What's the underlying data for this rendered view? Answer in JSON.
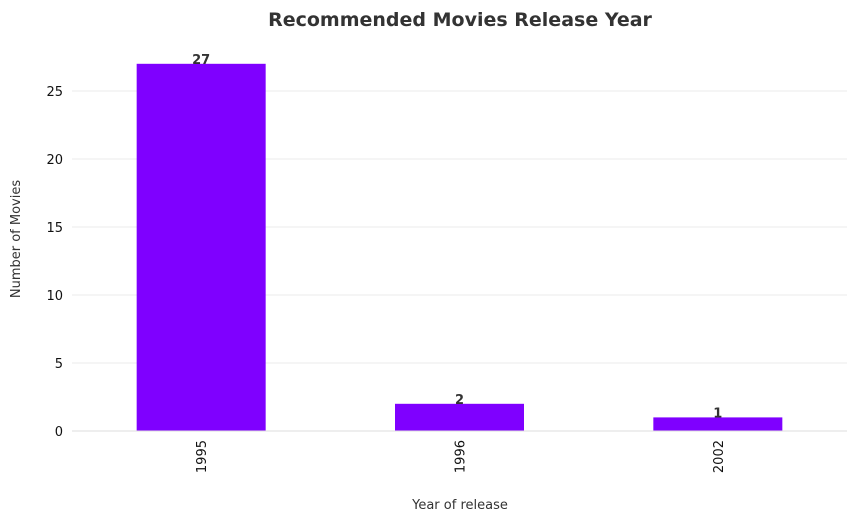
{
  "chart_data": {
    "type": "bar",
    "title": "Recommended Movies Release Year",
    "xlabel": "Year of release",
    "ylabel": "Number of Movies",
    "categories": [
      "1995",
      "1996",
      "2002"
    ],
    "values": [
      27,
      2,
      1
    ],
    "data_labels": [
      "27",
      "2",
      "1"
    ],
    "ylim": [
      0,
      28.35
    ],
    "yticks": [
      0,
      5,
      10,
      15,
      20,
      25
    ],
    "ytick_labels": [
      "0",
      "5",
      "10",
      "15",
      "20",
      "25"
    ],
    "grid": "y",
    "bar_color": "#7f00ff",
    "text_color": "#333333",
    "grid_color": "#ebebeb"
  }
}
